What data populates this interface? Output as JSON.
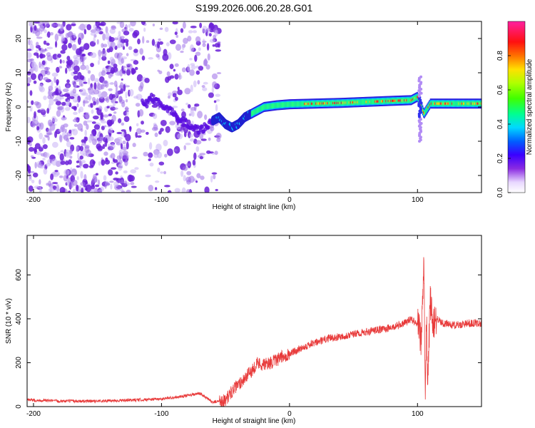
{
  "title": "S199.2026.006.20.28.G01",
  "chart_data": [
    {
      "type": "heatmap",
      "title": "S199.2026.006.20.28.G01",
      "xlabel": "Height of straight line (km)",
      "ylabel": "Frequency (Hz)",
      "xlim": [
        -205,
        150
      ],
      "ylim": [
        -25,
        25
      ],
      "xticks": [
        -200,
        -100,
        0,
        100
      ],
      "yticks": [
        -20,
        -10,
        0,
        10,
        20
      ],
      "colorbar": {
        "label": "Normalized spectral amplitude",
        "range": [
          0,
          1
        ],
        "ticks": [
          "0.0",
          "0.2",
          "0.4",
          "0.6",
          "0.8"
        ]
      },
      "dominant_frequency_track": {
        "x": [
          -110,
          -100,
          -90,
          -80,
          -70,
          -60,
          -55,
          -50,
          -45,
          -40,
          -35,
          -30,
          -20,
          -10,
          0,
          20,
          40,
          60,
          80,
          95,
          100,
          105,
          110,
          130,
          150
        ],
        "hz": [
          3,
          1,
          -2,
          -5,
          -7,
          -4,
          -3,
          -5,
          -6,
          -5,
          -3,
          -2,
          0,
          0.5,
          0.8,
          1,
          1.2,
          1.5,
          1.8,
          2,
          3,
          -2,
          1,
          1,
          1
        ]
      }
    },
    {
      "type": "line",
      "xlabel": "Height of straight line (km)",
      "ylabel": "SNR (10 * v/v)",
      "xlim": [
        -205,
        150
      ],
      "ylim": [
        0,
        780
      ],
      "xticks": [
        -200,
        -100,
        0,
        100
      ],
      "yticks": [
        0,
        200,
        400,
        600
      ],
      "series": [
        {
          "name": "SNR",
          "color": "#e83a3a",
          "x": [
            -205,
            -180,
            -150,
            -120,
            -100,
            -80,
            -70,
            -60,
            -50,
            -45,
            -40,
            -35,
            -30,
            -25,
            -20,
            -15,
            -10,
            -5,
            0,
            10,
            20,
            30,
            40,
            50,
            60,
            70,
            80,
            90,
            95,
            100,
            103,
            105,
            106,
            107,
            108,
            110,
            112,
            115,
            120,
            130,
            140,
            150
          ],
          "values": [
            30,
            25,
            25,
            30,
            35,
            50,
            60,
            20,
            30,
            70,
            100,
            130,
            160,
            200,
            190,
            200,
            210,
            230,
            240,
            270,
            290,
            310,
            320,
            330,
            340,
            350,
            360,
            380,
            400,
            380,
            300,
            700,
            20,
            400,
            120,
            480,
            380,
            400,
            380,
            370,
            380,
            380
          ]
        }
      ]
    }
  ]
}
